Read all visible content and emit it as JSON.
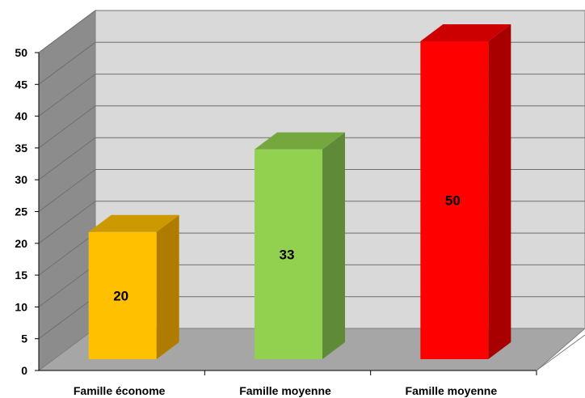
{
  "chart_data": {
    "type": "bar",
    "categories": [
      "Famille économe",
      "Famille moyenne",
      "Famille moyenne"
    ],
    "values": [
      20,
      33,
      50
    ],
    "colors": {
      "bars": [
        {
          "front": "#ffc000",
          "side": "#b07c00",
          "top": "#cc9a00"
        },
        {
          "front": "#92d050",
          "side": "#5f8a38",
          "top": "#74a83f"
        },
        {
          "front": "#ff0000",
          "side": "#a80000",
          "top": "#cc0000"
        }
      ],
      "wall_back": "#d9d9d9",
      "wall_side": "#8c8c8c",
      "floor": "#a6a6a6"
    },
    "ylim": [
      0,
      50
    ],
    "yticks": [
      "0",
      "5",
      "10",
      "15",
      "20",
      "25",
      "30",
      "35",
      "40",
      "45",
      "50"
    ],
    "grid": true,
    "data_labels": [
      "20",
      "33",
      "50"
    ],
    "legend": "none",
    "projection": "3d"
  }
}
